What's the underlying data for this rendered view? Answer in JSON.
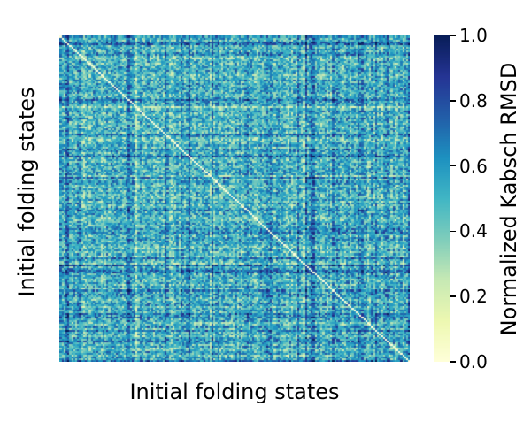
{
  "chart_data": {
    "type": "heatmap",
    "title": "",
    "xlabel": "Initial folding states",
    "ylabel": "Initial folding states",
    "x_ticks": [],
    "y_ticks": [],
    "colorbar": {
      "label": "Normalized Kabsch RMSD",
      "colormap": "YlGnBu",
      "range": [
        0.0,
        1.0
      ],
      "ticks": [
        "0.0",
        "0.2",
        "0.4",
        "0.6",
        "0.8",
        "1.0"
      ]
    },
    "matrix_summary": {
      "symmetric": true,
      "diagonal_value": 0.0,
      "typical_value": 0.5,
      "value_range": [
        0.0,
        1.0
      ]
    }
  },
  "colors": {
    "ylgnbu": [
      "#ffffd9",
      "#edf8b1",
      "#c7e9b4",
      "#7fcdbb",
      "#41b6c4",
      "#1d91c0",
      "#225ea8",
      "#253494",
      "#081d58"
    ]
  }
}
